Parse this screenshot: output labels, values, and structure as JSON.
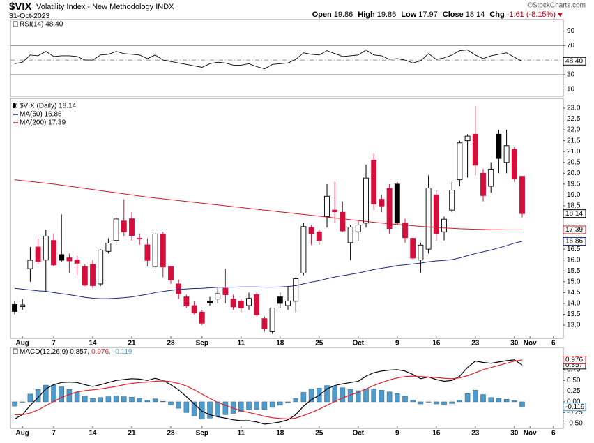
{
  "header": {
    "symbol": "$VIX",
    "name": "Volatility Index - New Methodology INDX",
    "date": "31-Oct-2023",
    "copyright": "©StockCharts.com",
    "quote": [
      {
        "key": "Open",
        "value": "19.86"
      },
      {
        "key": "High",
        "value": "19.86"
      },
      {
        "key": "Low",
        "value": "17.97"
      },
      {
        "key": "Close",
        "value": "18.14"
      },
      {
        "key": "Chg",
        "value": "-1.61 (-8.15%)",
        "color": "#c00020"
      }
    ]
  },
  "chart_data": [
    {
      "type": "line",
      "legend": "RSI(14) 48.40",
      "tag": "48.40",
      "color": "#000000",
      "ylim": [
        0,
        106
      ],
      "yticks": [
        90,
        70,
        50,
        30,
        10
      ],
      "levels": [
        70,
        30
      ],
      "centerline": 50,
      "values": [
        45,
        47,
        57,
        56,
        62,
        55,
        56,
        56,
        55,
        50,
        50,
        57,
        58,
        62,
        59,
        58,
        57,
        52,
        57,
        50,
        48,
        46,
        44,
        42,
        40,
        45,
        47,
        46,
        43,
        43,
        45,
        41,
        38,
        44,
        45,
        46,
        51,
        60,
        58,
        57,
        63,
        59,
        55,
        56,
        57,
        64,
        57,
        56,
        51,
        52,
        50,
        46,
        49,
        59,
        51,
        53,
        57,
        63,
        64,
        57,
        52,
        56,
        58,
        60,
        54,
        48.4,
        null,
        null,
        null,
        null
      ]
    },
    {
      "type": "candlestick",
      "legend": "$VIX (Daily) 18.14",
      "up_color": "#000000",
      "down_color": "#d40f3c",
      "ylim": [
        12.39,
        23.45
      ],
      "yticks": [
        {
          "value": 13,
          "label": "13.0"
        },
        {
          "value": 13.5,
          "label": "13.5"
        },
        {
          "value": 14,
          "label": "14.0"
        },
        {
          "value": 14.5,
          "label": "14.5"
        },
        {
          "value": 15,
          "label": "15.0"
        },
        {
          "value": 15.5,
          "label": "15.5"
        },
        {
          "value": 16,
          "label": "16.0"
        },
        {
          "value": 16.5,
          "label": "16.5"
        },
        {
          "value": 18.5,
          "label": "18.5"
        },
        {
          "value": 19,
          "label": "19.0"
        },
        {
          "value": 19.5,
          "label": "19.5"
        },
        {
          "value": 20,
          "label": "20.0"
        },
        {
          "value": 20.5,
          "label": "20.5"
        },
        {
          "value": 21,
          "label": "21.0"
        },
        {
          "value": 21.5,
          "label": "21.5"
        },
        {
          "value": 22,
          "label": "22.0"
        },
        {
          "value": 22.5,
          "label": "22.5"
        },
        {
          "value": 23,
          "label": "23.0"
        }
      ],
      "categories": [
        null,
        "Aug",
        null,
        null,
        null,
        "7",
        null,
        null,
        null,
        null,
        "14",
        null,
        null,
        null,
        null,
        "21",
        null,
        null,
        null,
        null,
        "28",
        null,
        null,
        null,
        "Sep",
        null,
        null,
        null,
        null,
        "11",
        null,
        null,
        null,
        null,
        "18",
        null,
        null,
        null,
        null,
        "25",
        null,
        null,
        null,
        null,
        "Oct",
        null,
        null,
        null,
        null,
        "9",
        null,
        null,
        null,
        null,
        "16",
        null,
        null,
        null,
        null,
        "23",
        null,
        null,
        null,
        null,
        "30",
        null,
        "Nov",
        null,
        null,
        "6"
      ],
      "ohlc": {
        "open": [
          13.95,
          13.85,
          15.6,
          16.6,
          16.0,
          16.9,
          16.25,
          16.1,
          16.0,
          15.7,
          15.8,
          14.9,
          16.4,
          16.9,
          17.8,
          17.9,
          17.0,
          16.7,
          15.7,
          17.2,
          15.7,
          14.9,
          14.3,
          13.9,
          13.6,
          14.1,
          14.2,
          14.7,
          14.2,
          14.1,
          13.9,
          14.4,
          13.3,
          12.7,
          14.3,
          13.9,
          14.1,
          15.4,
          17.5,
          17.3,
          18.0,
          18.3,
          18.2,
          16.8,
          17.3,
          17.7,
          20.6,
          18.8,
          19.3,
          19.5,
          17.7,
          17.0,
          16.0,
          16.5,
          19.0,
          17.3,
          18.3,
          19.7,
          21.5,
          21.8,
          20.0,
          19.4,
          21.8,
          20.5,
          21.1,
          19.86,
          null,
          null,
          null,
          null
        ],
        "high": [
          14.1,
          14.2,
          16.6,
          17.0,
          17.4,
          17.2,
          18.1,
          16.3,
          16.2,
          15.8,
          16.0,
          16.5,
          17.0,
          18.0,
          18.8,
          18.2,
          17.2,
          17.0,
          17.3,
          17.3,
          15.7,
          15.1,
          14.4,
          14.1,
          13.7,
          14.3,
          14.7,
          15.6,
          14.4,
          14.2,
          14.5,
          14.5,
          13.4,
          13.8,
          14.5,
          14.8,
          15.2,
          17.7,
          17.6,
          17.4,
          19.5,
          19.6,
          18.7,
          17.6,
          17.8,
          20.4,
          20.9,
          19.0,
          19.5,
          19.6,
          17.9,
          17.0,
          16.8,
          19.9,
          19.2,
          18.0,
          19.6,
          21.5,
          21.8,
          23.1,
          20.2,
          20.5,
          22.0,
          22.0,
          21.2,
          19.86,
          null,
          null,
          null,
          null
        ],
        "low": [
          13.5,
          13.7,
          15.0,
          15.8,
          14.55,
          15.7,
          15.9,
          15.4,
          15.3,
          14.8,
          14.7,
          14.8,
          16.3,
          16.7,
          17.1,
          16.9,
          16.7,
          15.7,
          15.6,
          15.2,
          14.9,
          14.2,
          13.8,
          13.5,
          13.0,
          13.9,
          14.0,
          14.0,
          13.7,
          13.6,
          13.7,
          13.4,
          12.7,
          12.6,
          13.8,
          13.7,
          13.6,
          15.3,
          16.7,
          16.7,
          17.5,
          17.7,
          17.3,
          16.0,
          16.9,
          17.5,
          18.3,
          18.2,
          17.2,
          17.6,
          16.8,
          16.0,
          15.4,
          16.3,
          16.9,
          16.9,
          18.2,
          19.4,
          19.8,
          19.9,
          18.7,
          19.1,
          20.0,
          20.0,
          19.6,
          17.97,
          null,
          null,
          null,
          null
        ],
        "close": [
          13.63,
          13.93,
          15.99,
          15.92,
          17.1,
          15.77,
          15.99,
          15.96,
          15.85,
          14.84,
          14.82,
          16.46,
          16.78,
          17.89,
          17.3,
          17.13,
          16.97,
          15.98,
          17.2,
          15.68,
          15.08,
          14.45,
          13.88,
          13.57,
          13.09,
          14.02,
          14.45,
          14.4,
          13.84,
          13.8,
          14.23,
          13.48,
          12.82,
          13.79,
          14.0,
          14.11,
          15.14,
          17.54,
          17.2,
          16.9,
          18.94,
          18.22,
          17.34,
          17.52,
          17.61,
          19.78,
          18.58,
          18.49,
          17.45,
          17.7,
          17.03,
          16.09,
          16.69,
          19.32,
          17.21,
          17.88,
          19.22,
          21.4,
          21.71,
          20.37,
          18.97,
          20.19,
          20.68,
          21.27,
          19.75,
          18.14,
          null,
          null,
          null,
          null
        ]
      },
      "series": [
        {
          "name": "MA(50) 16.86",
          "color": "#1c2a7a",
          "values": [
            14.7,
            14.66,
            14.62,
            14.58,
            14.56,
            14.5,
            14.45,
            14.4,
            14.34,
            14.28,
            14.24,
            14.22,
            14.22,
            14.24,
            14.26,
            14.3,
            14.36,
            14.42,
            14.5,
            14.55,
            14.6,
            14.64,
            14.67,
            14.69,
            14.7,
            14.72,
            14.74,
            14.75,
            14.75,
            14.76,
            14.76,
            14.76,
            14.75,
            14.75,
            14.76,
            14.78,
            14.82,
            14.9,
            14.98,
            15.05,
            15.14,
            15.22,
            15.28,
            15.34,
            15.4,
            15.48,
            15.56,
            15.62,
            15.68,
            15.74,
            15.78,
            15.82,
            15.86,
            15.92,
            15.96,
            15.98,
            16.02,
            16.1,
            16.2,
            16.3,
            16.38,
            16.46,
            16.56,
            16.66,
            16.78,
            16.86,
            null,
            null,
            null,
            null
          ]
        },
        {
          "name": "MA(200) 17.39",
          "color": "#cc1a2b",
          "values": [
            19.7,
            19.66,
            19.62,
            19.58,
            19.54,
            19.5,
            19.45,
            19.4,
            19.35,
            19.3,
            19.25,
            19.2,
            19.15,
            19.1,
            19.05,
            19.0,
            18.95,
            18.9,
            18.86,
            18.82,
            18.78,
            18.74,
            18.7,
            18.66,
            18.62,
            18.58,
            18.54,
            18.5,
            18.46,
            18.42,
            18.38,
            18.34,
            18.3,
            18.26,
            18.22,
            18.18,
            18.14,
            18.1,
            18.06,
            18.02,
            17.98,
            17.94,
            17.9,
            17.86,
            17.82,
            17.78,
            17.74,
            17.7,
            17.67,
            17.64,
            17.61,
            17.58,
            17.55,
            17.52,
            17.5,
            17.48,
            17.46,
            17.44,
            17.43,
            17.42,
            17.41,
            17.4,
            17.4,
            17.39,
            17.39,
            17.39,
            null,
            null,
            null,
            null
          ]
        }
      ]
    },
    {
      "type": "combo",
      "legend": [
        "MACD(12,26,9) 0.857,",
        "0.976,",
        "-0.119"
      ],
      "ylim": [
        -0.62,
        1.27
      ],
      "yticks": [
        {
          "value": 0.75,
          "label": "0.75"
        },
        {
          "value": 0.5,
          "label": "0.50"
        },
        {
          "value": 0.25,
          "label": "0.25"
        },
        {
          "value": 0,
          "label": "0.00"
        },
        {
          "value": -0.25,
          "label": "-0.25"
        },
        {
          "value": -0.5,
          "label": "-0.50"
        }
      ],
      "categories": [
        null,
        "Aug",
        null,
        null,
        null,
        "7",
        null,
        null,
        null,
        null,
        "14",
        null,
        null,
        null,
        null,
        "21",
        null,
        null,
        null,
        null,
        "28",
        null,
        null,
        null,
        "Sep",
        null,
        null,
        null,
        null,
        "11",
        null,
        null,
        null,
        null,
        "18",
        null,
        null,
        null,
        null,
        "25",
        null,
        null,
        null,
        null,
        "Oct",
        null,
        null,
        null,
        null,
        "9",
        null,
        null,
        null,
        null,
        "16",
        null,
        null,
        null,
        null,
        "23",
        null,
        null,
        null,
        null,
        "30",
        null,
        "Nov",
        null,
        null,
        "6"
      ],
      "series": [
        {
          "style": "line",
          "color": "#000000",
          "values": [
            -0.4,
            -0.3,
            -0.08,
            0.1,
            0.3,
            0.4,
            0.45,
            0.46,
            0.45,
            0.4,
            0.36,
            0.4,
            0.45,
            0.5,
            0.52,
            0.54,
            0.53,
            0.5,
            0.55,
            0.5,
            0.4,
            0.28,
            0.12,
            -0.05,
            -0.22,
            -0.3,
            -0.35,
            -0.38,
            -0.42,
            -0.44,
            -0.44,
            -0.47,
            -0.52,
            -0.5,
            -0.47,
            -0.42,
            -0.3,
            -0.1,
            0.05,
            0.15,
            0.3,
            0.38,
            0.42,
            0.45,
            0.48,
            0.6,
            0.68,
            0.72,
            0.74,
            0.75,
            0.72,
            0.64,
            0.54,
            0.58,
            0.52,
            0.48,
            0.5,
            0.6,
            0.8,
            0.95,
            0.92,
            0.9,
            0.93,
            0.96,
            0.98,
            0.857,
            null,
            null,
            null,
            null
          ]
        },
        {
          "style": "line",
          "color": "#e0202a",
          "values": [
            -0.3,
            -0.3,
            -0.26,
            -0.19,
            -0.09,
            0.01,
            0.1,
            0.17,
            0.23,
            0.26,
            0.28,
            0.3,
            0.33,
            0.36,
            0.4,
            0.43,
            0.45,
            0.46,
            0.48,
            0.49,
            0.47,
            0.43,
            0.37,
            0.28,
            0.18,
            0.08,
            -0.01,
            -0.08,
            -0.15,
            -0.21,
            -0.25,
            -0.29,
            -0.34,
            -0.37,
            -0.39,
            -0.4,
            -0.38,
            -0.32,
            -0.25,
            -0.17,
            -0.08,
            0.01,
            0.09,
            0.16,
            0.22,
            0.3,
            0.38,
            0.45,
            0.51,
            0.56,
            0.59,
            0.6,
            0.59,
            0.58,
            0.57,
            0.55,
            0.54,
            0.56,
            0.61,
            0.68,
            0.75,
            0.8,
            0.85,
            0.9,
            0.95,
            0.976,
            null,
            null,
            null,
            null
          ]
        },
        {
          "style": "bar",
          "color": "#4f9bcb",
          "values": [
            -0.1,
            0.0,
            0.18,
            0.29,
            0.39,
            0.39,
            0.35,
            0.29,
            0.22,
            0.14,
            0.08,
            0.1,
            0.12,
            0.14,
            0.12,
            0.11,
            0.08,
            0.04,
            0.07,
            0.01,
            -0.07,
            -0.15,
            -0.25,
            -0.33,
            -0.4,
            -0.38,
            -0.34,
            -0.3,
            -0.27,
            -0.23,
            -0.19,
            -0.18,
            -0.18,
            -0.13,
            -0.08,
            -0.02,
            0.08,
            0.22,
            0.3,
            0.32,
            0.38,
            0.37,
            0.33,
            0.29,
            0.26,
            0.3,
            0.3,
            0.27,
            0.23,
            0.19,
            0.13,
            0.04,
            -0.05,
            0.0,
            -0.05,
            -0.07,
            -0.04,
            0.04,
            0.19,
            0.27,
            0.17,
            0.1,
            0.08,
            0.06,
            0.03,
            -0.119,
            null,
            null,
            null,
            null
          ]
        }
      ]
    }
  ]
}
